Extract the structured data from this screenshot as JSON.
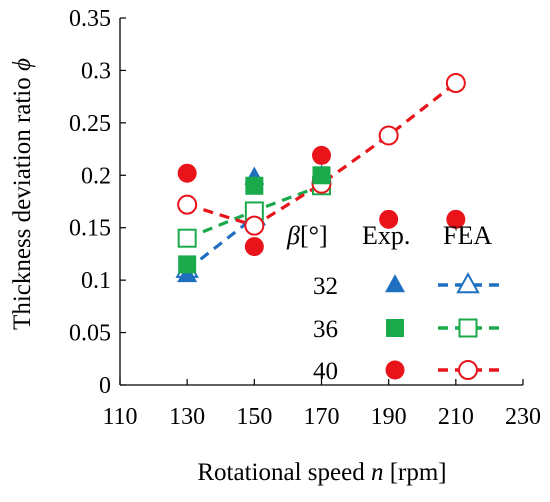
{
  "chart_data": {
    "type": "scatter",
    "xlabel_prefix": "Rotational speed ",
    "xlabel_symbol": "n",
    "xlabel_unit": " [rpm]",
    "ylabel_prefix": "Thickness deviation ratio ",
    "ylabel_symbol": "ϕ",
    "xlim": [
      110,
      230
    ],
    "ylim": [
      0,
      0.35
    ],
    "xticks": [
      "110",
      "130",
      "150",
      "170",
      "190",
      "210",
      "230"
    ],
    "yticks": [
      "0",
      "0.05",
      "0.1",
      "0.15",
      "0.2",
      "0.25",
      "0.3",
      "0.35"
    ],
    "grid": false,
    "legend": {
      "position": "bottom-right",
      "header_symbol": "β",
      "header_unit": "[°]",
      "exp_label": "Exp.",
      "fea_label": "FEA",
      "rows": [
        "32",
        "36",
        "40"
      ]
    },
    "series": [
      {
        "beta": "32",
        "kind": "Exp.",
        "marker": "triangle",
        "filled": true,
        "color": "#1f6fc0",
        "x": [
          130,
          150,
          170
        ],
        "y": [
          0.105,
          0.198,
          0.2
        ]
      },
      {
        "beta": "32",
        "kind": "FEA",
        "marker": "triangle",
        "filled": false,
        "color": "#1f6fc0",
        "dashed": true,
        "x": [
          130,
          150
        ],
        "y": [
          0.11,
          0.16
        ]
      },
      {
        "beta": "36",
        "kind": "Exp.",
        "marker": "square",
        "filled": true,
        "color": "#1aaa4c",
        "x": [
          130,
          150,
          170
        ],
        "y": [
          0.115,
          0.19,
          0.2
        ]
      },
      {
        "beta": "36",
        "kind": "FEA",
        "marker": "square",
        "filled": false,
        "color": "#1aaa4c",
        "dashed": true,
        "x": [
          130,
          150,
          170
        ],
        "y": [
          0.14,
          0.166,
          0.19
        ]
      },
      {
        "beta": "40",
        "kind": "Exp.",
        "marker": "circle",
        "filled": true,
        "color": "#e8141a",
        "x": [
          130,
          150,
          170,
          190,
          210
        ],
        "y": [
          0.202,
          0.132,
          0.219,
          0.158,
          0.158
        ]
      },
      {
        "beta": "40",
        "kind": "FEA",
        "marker": "circle",
        "filled": false,
        "color": "#e8141a",
        "dashed": true,
        "x": [
          130,
          150,
          170,
          190,
          210
        ],
        "y": [
          0.172,
          0.152,
          0.192,
          0.238,
          0.288
        ]
      }
    ]
  }
}
